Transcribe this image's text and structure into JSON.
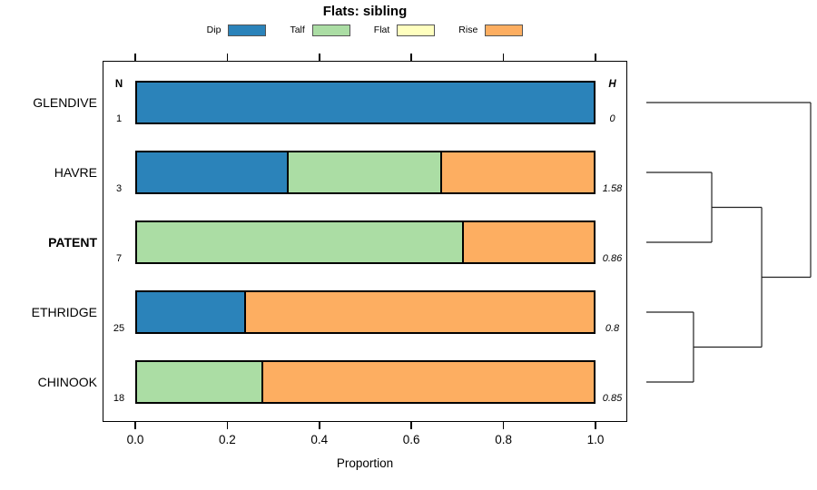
{
  "title": "Flats: sibling",
  "legend": {
    "items": [
      {
        "label": "Dip",
        "color": "#2B83BA"
      },
      {
        "label": "Talf",
        "color": "#ABDDA4"
      },
      {
        "label": "Flat",
        "color": "#FFFFBF"
      },
      {
        "label": "Rise",
        "color": "#FDAE61"
      }
    ]
  },
  "table": {
    "n_header": "N",
    "h_header": "H"
  },
  "axis": {
    "label": "Proportion",
    "tick_labels": [
      "0.0",
      "0.2",
      "0.4",
      "0.6",
      "0.8",
      "1.0"
    ]
  },
  "chart_data": {
    "type": "bar",
    "subtype": "horizontal-stacked-proportion",
    "title": "Flats: sibling",
    "xlabel": "Proportion",
    "xlim": [
      0,
      1
    ],
    "x_ticks": [
      0.0,
      0.2,
      0.4,
      0.6,
      0.8,
      1.0
    ],
    "grid": false,
    "legend_position": "top",
    "series_order": [
      "Dip",
      "Talf",
      "Flat",
      "Rise"
    ],
    "colors": {
      "Dip": "#2B83BA",
      "Talf": "#ABDDA4",
      "Flat": "#FFFFBF",
      "Rise": "#FDAE61"
    },
    "rows": [
      {
        "label": "GLENDIVE",
        "bold": false,
        "n": 1,
        "h": "0",
        "proportions": {
          "Dip": 1.0,
          "Talf": 0,
          "Flat": 0,
          "Rise": 0
        }
      },
      {
        "label": "HAVRE",
        "bold": false,
        "n": 3,
        "h": "1.58",
        "proportions": {
          "Dip": 0.3333,
          "Talf": 0.3333,
          "Flat": 0,
          "Rise": 0.3334
        }
      },
      {
        "label": "PATENT",
        "bold": true,
        "n": 7,
        "h": "0.86",
        "proportions": {
          "Dip": 0,
          "Talf": 0.7143,
          "Flat": 0,
          "Rise": 0.2857
        }
      },
      {
        "label": "ETHRIDGE",
        "bold": false,
        "n": 25,
        "h": "0.8",
        "proportions": {
          "Dip": 0.24,
          "Talf": 0,
          "Flat": 0,
          "Rise": 0.76
        }
      },
      {
        "label": "CHINOOK",
        "bold": false,
        "n": 18,
        "h": "0.85",
        "proportions": {
          "Dip": 0,
          "Talf": 0.2778,
          "Flat": 0,
          "Rise": 0.7222
        }
      }
    ],
    "dendrogram": {
      "orientation": "right",
      "leaves": [
        "GLENDIVE",
        "HAVRE",
        "PATENT",
        "ETHRIDGE",
        "CHINOOK"
      ],
      "merges": [
        {
          "a": 1,
          "b": 2,
          "height": 0.398
        },
        {
          "a": 3,
          "b": 4,
          "height": 0.287
        },
        {
          "a": 5,
          "b": 6,
          "height": 0.702
        },
        {
          "a": 0,
          "b": 7,
          "height": 1.0
        }
      ]
    }
  }
}
